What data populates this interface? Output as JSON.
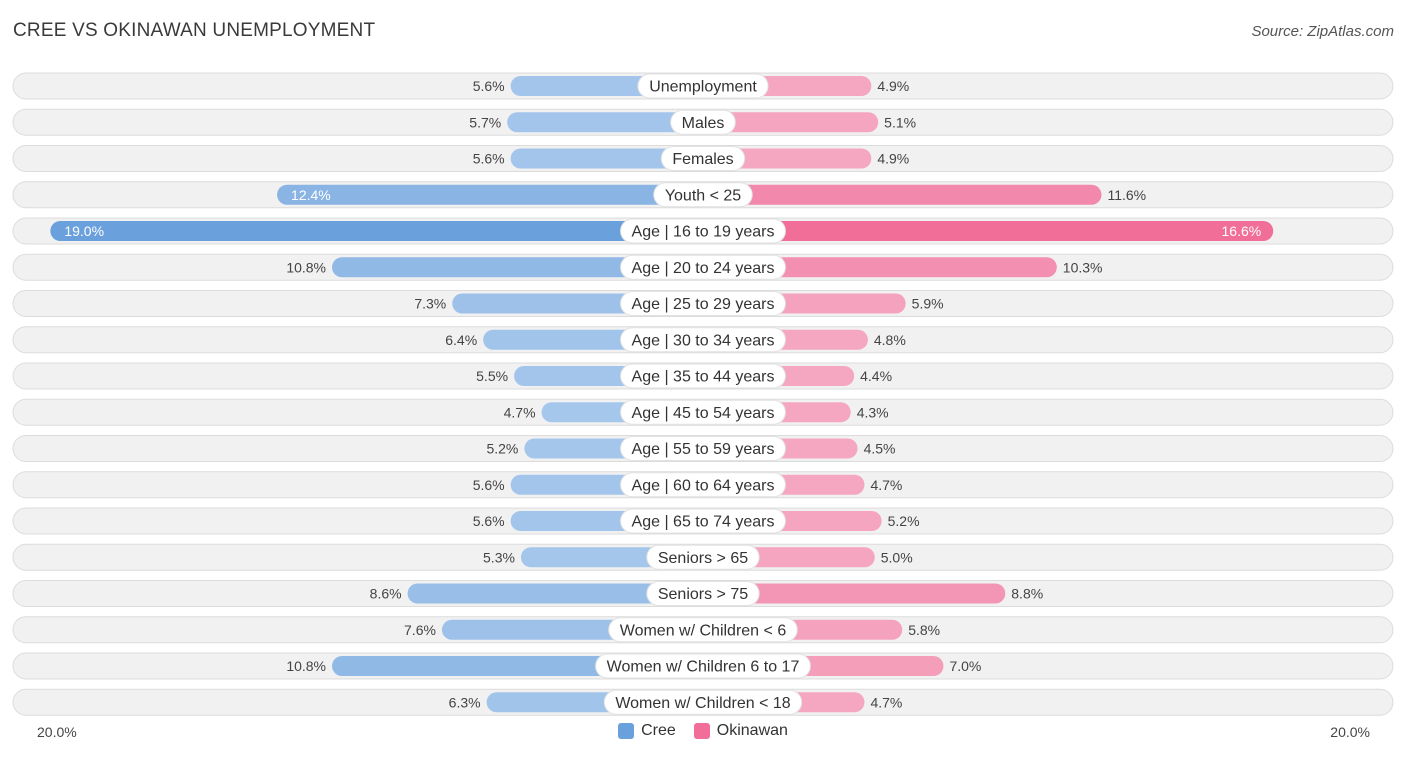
{
  "title": "CREE VS OKINAWAN UNEMPLOYMENT",
  "source": "Source: ZipAtlas.com",
  "colors": {
    "cree": "#6aa0dc",
    "cree_light": "#a8c8ec",
    "okinawan": "#f06e98",
    "okinawan_light": "#f5a8c2",
    "row_bg": "#f1f1f1",
    "row_border": "#dcdcdc"
  },
  "legend": {
    "cree": "Cree",
    "okinawan": "Okinawan"
  },
  "axis": {
    "left": "20.0%",
    "right": "20.0%"
  },
  "chart_data": {
    "type": "bar",
    "orientation": "diverging-horizontal",
    "title": "CREE VS OKINAWAN UNEMPLOYMENT",
    "xlim": [
      -20,
      20
    ],
    "categories": [
      "Unemployment",
      "Males",
      "Females",
      "Youth < 25",
      "Age | 16 to 19 years",
      "Age | 20 to 24 years",
      "Age | 25 to 29 years",
      "Age | 30 to 34 years",
      "Age | 35 to 44 years",
      "Age | 45 to 54 years",
      "Age | 55 to 59 years",
      "Age | 60 to 64 years",
      "Age | 65 to 74 years",
      "Seniors > 65",
      "Seniors > 75",
      "Women w/ Children < 6",
      "Women w/ Children 6 to 17",
      "Women w/ Children < 18"
    ],
    "series": [
      {
        "name": "Cree",
        "values": [
          5.6,
          5.7,
          5.6,
          12.4,
          19.0,
          10.8,
          7.3,
          6.4,
          5.5,
          4.7,
          5.2,
          5.6,
          5.6,
          5.3,
          8.6,
          7.6,
          10.8,
          6.3
        ],
        "labels": [
          "5.6%",
          "5.7%",
          "5.6%",
          "12.4%",
          "19.0%",
          "10.8%",
          "7.3%",
          "6.4%",
          "5.5%",
          "4.7%",
          "5.2%",
          "5.6%",
          "5.6%",
          "5.3%",
          "8.6%",
          "7.6%",
          "10.8%",
          "6.3%"
        ]
      },
      {
        "name": "Okinawan",
        "values": [
          4.9,
          5.1,
          4.9,
          11.6,
          16.6,
          10.3,
          5.9,
          4.8,
          4.4,
          4.3,
          4.5,
          4.7,
          5.2,
          5.0,
          8.8,
          5.8,
          7.0,
          4.7
        ],
        "labels": [
          "4.9%",
          "5.1%",
          "4.9%",
          "11.6%",
          "16.6%",
          "10.3%",
          "5.9%",
          "4.8%",
          "4.4%",
          "4.3%",
          "4.5%",
          "4.7%",
          "5.2%",
          "5.0%",
          "8.8%",
          "5.8%",
          "7.0%",
          "4.7%"
        ]
      }
    ]
  }
}
